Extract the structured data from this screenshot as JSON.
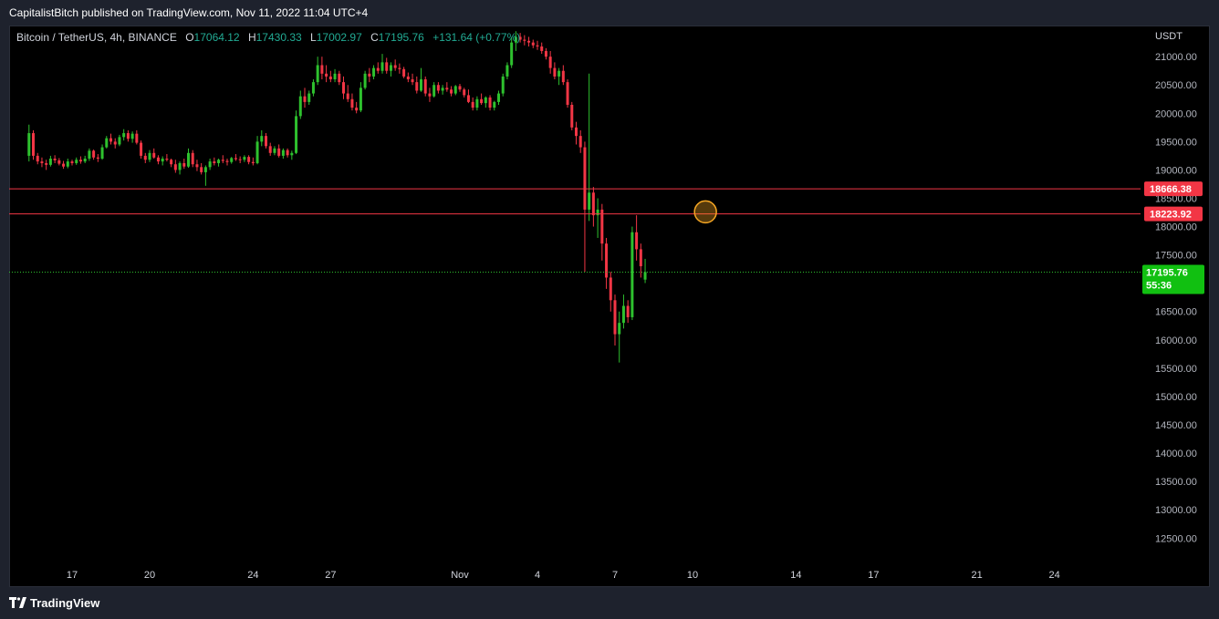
{
  "header": {
    "published_text": "CapitalistBitch published on TradingView.com, Nov 11, 2022 11:04 UTC+4"
  },
  "legend": {
    "symbol": "Bitcoin / TetherUS, 4h, BINANCE",
    "open_label": "O",
    "open": "17064.12",
    "high_label": "H",
    "high": "17430.33",
    "low_label": "L",
    "low": "17002.97",
    "close_label": "C",
    "close": "17195.76",
    "change": "+131.64 (+0.77%)"
  },
  "currency": "USDT",
  "colors": {
    "up": "#22ab94",
    "down": "#f23645",
    "upBright": "#2ec12e",
    "level": "#f23645",
    "circle": "#f5a623"
  },
  "price_badges": {
    "level_high": "18666.38",
    "level_low": "18223.92",
    "last_price": "17195.76",
    "countdown": "55:36"
  },
  "footer": {
    "brand": "TradingView",
    "logo_icon": "tradingview-logo-icon"
  },
  "chart_data": {
    "type": "candlestick",
    "symbol": "Bitcoin / TetherUS",
    "interval": "4h",
    "exchange": "BINANCE",
    "y_axis_position": "right",
    "ylim": [
      12150,
      21550
    ],
    "y_ticks": [
      21000,
      20500,
      20000,
      19500,
      19000,
      18500,
      18000,
      17500,
      17000,
      16500,
      16000,
      15500,
      15000,
      14500,
      14000,
      13500,
      13000,
      12500
    ],
    "y_tick_labels": [
      "21000.00",
      "20500.00",
      "20000.00",
      "19500.00",
      "19000.00",
      "18500.00",
      "18000.00",
      "17500.00",
      "17000.00",
      "16500.00",
      "16000.00",
      "15500.00",
      "15000.00",
      "14500.00",
      "14000.00",
      "13500.00",
      "13000.00",
      "12500.00"
    ],
    "x_ticks": [
      {
        "label": "17",
        "date": "2022-10-17"
      },
      {
        "label": "20",
        "date": "2022-10-20"
      },
      {
        "label": "24",
        "date": "2022-10-24"
      },
      {
        "label": "27",
        "date": "2022-10-27"
      },
      {
        "label": "Nov",
        "date": "2022-11-01"
      },
      {
        "label": "4",
        "date": "2022-11-04"
      },
      {
        "label": "7",
        "date": "2022-11-07"
      },
      {
        "label": "10",
        "date": "2022-11-10"
      },
      {
        "label": "14",
        "date": "2022-11-14"
      },
      {
        "label": "17",
        "date": "2022-11-17"
      },
      {
        "label": "21",
        "date": "2022-11-21"
      },
      {
        "label": "24",
        "date": "2022-11-24"
      }
    ],
    "horizontal_levels": [
      18666.38,
      18223.92
    ],
    "last_price_line": 17195.76,
    "highlight_circle": {
      "date": "2022-11-10 12:00",
      "price": 18260
    },
    "candle_start": "2022-10-15 08:00",
    "candle_interval_hours": 4,
    "candles": [
      [
        19250,
        19800,
        19150,
        19650
      ],
      [
        19650,
        19700,
        19180,
        19250
      ],
      [
        19250,
        19300,
        19100,
        19150
      ],
      [
        19150,
        19220,
        19050,
        19120
      ],
      [
        19120,
        19180,
        19000,
        19090
      ],
      [
        19090,
        19250,
        19060,
        19200
      ],
      [
        19200,
        19260,
        19120,
        19170
      ],
      [
        19170,
        19210,
        19080,
        19110
      ],
      [
        19110,
        19160,
        19020,
        19060
      ],
      [
        19060,
        19200,
        19030,
        19150
      ],
      [
        19150,
        19180,
        19080,
        19120
      ],
      [
        19120,
        19220,
        19090,
        19180
      ],
      [
        19180,
        19240,
        19110,
        19150
      ],
      [
        19150,
        19250,
        19120,
        19200
      ],
      [
        19200,
        19380,
        19160,
        19340
      ],
      [
        19340,
        19360,
        19180,
        19220
      ],
      [
        19220,
        19280,
        19140,
        19200
      ],
      [
        19200,
        19450,
        19180,
        19400
      ],
      [
        19400,
        19600,
        19380,
        19560
      ],
      [
        19560,
        19640,
        19450,
        19500
      ],
      [
        19500,
        19560,
        19380,
        19450
      ],
      [
        19450,
        19620,
        19420,
        19580
      ],
      [
        19580,
        19720,
        19520,
        19650
      ],
      [
        19650,
        19700,
        19500,
        19550
      ],
      [
        19550,
        19680,
        19480,
        19640
      ],
      [
        19640,
        19700,
        19450,
        19480
      ],
      [
        19480,
        19520,
        19200,
        19250
      ],
      [
        19250,
        19300,
        19120,
        19180
      ],
      [
        19180,
        19350,
        19140,
        19300
      ],
      [
        19300,
        19380,
        19200,
        19220
      ],
      [
        19220,
        19260,
        19100,
        19150
      ],
      [
        19150,
        19240,
        19080,
        19200
      ],
      [
        19200,
        19280,
        19150,
        19180
      ],
      [
        19180,
        19200,
        19050,
        19100
      ],
      [
        19100,
        19180,
        18950,
        19000
      ],
      [
        19000,
        19150,
        18920,
        19120
      ],
      [
        19120,
        19200,
        19020,
        19060
      ],
      [
        19060,
        19380,
        19040,
        19300
      ],
      [
        19300,
        19350,
        19050,
        19100
      ],
      [
        19100,
        19180,
        18980,
        19050
      ],
      [
        19050,
        19120,
        18920,
        18960
      ],
      [
        18960,
        19080,
        18720,
        19050
      ],
      [
        19050,
        19200,
        19000,
        19150
      ],
      [
        19150,
        19220,
        19080,
        19120
      ],
      [
        19120,
        19200,
        19060,
        19180
      ],
      [
        19180,
        19260,
        19120,
        19160
      ],
      [
        19160,
        19200,
        19080,
        19140
      ],
      [
        19140,
        19230,
        19110,
        19210
      ],
      [
        19210,
        19280,
        19160,
        19190
      ],
      [
        19190,
        19240,
        19120,
        19180
      ],
      [
        19180,
        19260,
        19140,
        19230
      ],
      [
        19230,
        19260,
        19100,
        19140
      ],
      [
        19140,
        19220,
        19080,
        19120
      ],
      [
        19120,
        19600,
        19100,
        19500
      ],
      [
        19500,
        19700,
        19420,
        19600
      ],
      [
        19600,
        19650,
        19380,
        19420
      ],
      [
        19420,
        19480,
        19250,
        19300
      ],
      [
        19300,
        19420,
        19260,
        19380
      ],
      [
        19380,
        19450,
        19220,
        19250
      ],
      [
        19250,
        19380,
        19200,
        19350
      ],
      [
        19350,
        19380,
        19220,
        19260
      ],
      [
        19260,
        19340,
        19180,
        19300
      ],
      [
        19300,
        20050,
        19280,
        19950
      ],
      [
        19950,
        20400,
        19900,
        20300
      ],
      [
        20300,
        20450,
        20100,
        20200
      ],
      [
        20200,
        20400,
        20150,
        20350
      ],
      [
        20350,
        20600,
        20300,
        20550
      ],
      [
        20550,
        21000,
        20500,
        20850
      ],
      [
        20850,
        21000,
        20600,
        20700
      ],
      [
        20700,
        20850,
        20550,
        20650
      ],
      [
        20650,
        20750,
        20550,
        20600
      ],
      [
        20600,
        20780,
        20550,
        20700
      ],
      [
        20700,
        20750,
        20500,
        20550
      ],
      [
        20550,
        20650,
        20250,
        20350
      ],
      [
        20350,
        20500,
        20200,
        20250
      ],
      [
        20250,
        20350,
        20050,
        20100
      ],
      [
        20100,
        20200,
        20000,
        20050
      ],
      [
        20050,
        20550,
        20020,
        20450
      ],
      [
        20450,
        20750,
        20420,
        20700
      ],
      [
        20700,
        20800,
        20550,
        20650
      ],
      [
        20650,
        20850,
        20600,
        20800
      ],
      [
        20800,
        20900,
        20700,
        20750
      ],
      [
        20750,
        21050,
        20700,
        20900
      ],
      [
        20900,
        20980,
        20700,
        20750
      ],
      [
        20750,
        20900,
        20650,
        20850
      ],
      [
        20850,
        20950,
        20750,
        20800
      ],
      [
        20800,
        20880,
        20700,
        20780
      ],
      [
        20780,
        20820,
        20620,
        20650
      ],
      [
        20650,
        20720,
        20550,
        20600
      ],
      [
        20600,
        20700,
        20500,
        20550
      ],
      [
        20550,
        20650,
        20350,
        20400
      ],
      [
        20400,
        20800,
        20380,
        20600
      ],
      [
        20600,
        20650,
        20300,
        20350
      ],
      [
        20350,
        20450,
        20200,
        20300
      ],
      [
        20300,
        20550,
        20280,
        20500
      ],
      [
        20500,
        20550,
        20350,
        20400
      ],
      [
        20400,
        20500,
        20330,
        20450
      ],
      [
        20450,
        20550,
        20380,
        20420
      ],
      [
        20420,
        20480,
        20300,
        20350
      ],
      [
        20350,
        20500,
        20320,
        20480
      ],
      [
        20480,
        20520,
        20380,
        20420
      ],
      [
        20420,
        20450,
        20280,
        20320
      ],
      [
        20320,
        20420,
        20180,
        20200
      ],
      [
        20200,
        20280,
        20050,
        20100
      ],
      [
        20100,
        20300,
        20050,
        20250
      ],
      [
        20250,
        20350,
        20150,
        20180
      ],
      [
        20180,
        20300,
        20100,
        20280
      ],
      [
        20280,
        20320,
        20050,
        20100
      ],
      [
        20100,
        20220,
        20050,
        20200
      ],
      [
        20200,
        20400,
        20150,
        20350
      ],
      [
        20350,
        20700,
        20300,
        20650
      ],
      [
        20650,
        20900,
        20600,
        20850
      ],
      [
        20850,
        21350,
        20800,
        21250
      ],
      [
        21250,
        21450,
        21100,
        21350
      ],
      [
        21350,
        21420,
        21250,
        21300
      ],
      [
        21300,
        21380,
        21200,
        21280
      ],
      [
        21280,
        21350,
        21180,
        21250
      ],
      [
        21250,
        21300,
        21150,
        21200
      ],
      [
        21200,
        21280,
        21120,
        21180
      ],
      [
        21180,
        21250,
        21050,
        21100
      ],
      [
        21100,
        21150,
        20950,
        21000
      ],
      [
        21000,
        21100,
        20700,
        20800
      ],
      [
        20800,
        20900,
        20600,
        20650
      ],
      [
        20650,
        20800,
        20500,
        20750
      ],
      [
        20750,
        20850,
        20500,
        20550
      ],
      [
        20550,
        20600,
        20100,
        20150
      ],
      [
        20150,
        20200,
        19700,
        19750
      ],
      [
        19750,
        19850,
        19450,
        19600
      ],
      [
        19600,
        19700,
        19300,
        19400
      ],
      [
        19400,
        19500,
        17200,
        18300
      ],
      [
        18300,
        20700,
        18100,
        18600
      ],
      [
        18600,
        18700,
        18000,
        18200
      ],
      [
        18200,
        18500,
        17800,
        18300
      ],
      [
        18300,
        18400,
        17400,
        17700
      ],
      [
        17700,
        17800,
        16900,
        17100
      ],
      [
        17100,
        17200,
        16500,
        16700
      ],
      [
        16700,
        16800,
        15900,
        16100
      ],
      [
        16100,
        16500,
        15600,
        16300
      ],
      [
        16300,
        16800,
        16200,
        16600
      ],
      [
        16600,
        16700,
        16300,
        16400
      ],
      [
        16400,
        18000,
        16350,
        17900
      ],
      [
        17900,
        18200,
        17400,
        17600
      ],
      [
        17600,
        17700,
        17100,
        17300
      ],
      [
        17064.12,
        17430.33,
        17002.97,
        17195.76
      ]
    ]
  }
}
